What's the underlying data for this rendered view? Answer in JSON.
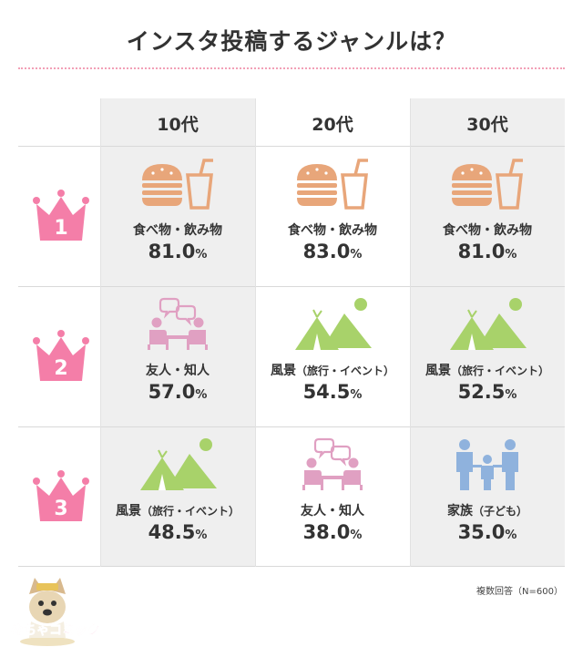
{
  "title": "インスタ投稿するジャンルは？",
  "columns": [
    "10代",
    "20代",
    "30代"
  ],
  "ranks": [
    "1",
    "2",
    "3"
  ],
  "cells": [
    [
      {
        "genre": "食べ物・飲み物",
        "sub": "",
        "value": "81.0",
        "unit": "%",
        "icon": "burger-drink-icon"
      },
      {
        "genre": "食べ物・飲み物",
        "sub": "",
        "value": "83.0",
        "unit": "%",
        "icon": "burger-drink-icon"
      },
      {
        "genre": "食べ物・飲み物",
        "sub": "",
        "value": "81.0",
        "unit": "%",
        "icon": "burger-drink-icon"
      }
    ],
    [
      {
        "genre": "友人・知人",
        "sub": "",
        "value": "57.0",
        "unit": "%",
        "icon": "friends-chat-icon"
      },
      {
        "genre": "風景",
        "sub": "（旅行・イベント）",
        "value": "54.5",
        "unit": "%",
        "icon": "tent-landscape-icon"
      },
      {
        "genre": "風景",
        "sub": "（旅行・イベント）",
        "value": "52.5",
        "unit": "%",
        "icon": "tent-landscape-icon"
      }
    ],
    [
      {
        "genre": "風景",
        "sub": "（旅行・イベント）",
        "value": "48.5",
        "unit": "%",
        "icon": "tent-landscape-icon"
      },
      {
        "genre": "友人・知人",
        "sub": "",
        "value": "38.0",
        "unit": "%",
        "icon": "friends-chat-icon"
      },
      {
        "genre": "家族",
        "sub": "（子ども）",
        "value": "35.0",
        "unit": "%",
        "icon": "family-icon"
      }
    ]
  ],
  "note": "複数回答（N=600）",
  "logo": {
    "text": "めちゃコミック"
  },
  "colors": {
    "pink": "#f47ea8",
    "food": "#e8a67a",
    "friends": "#e0a0c2",
    "landscape": "#a8d26a",
    "family": "#8fb2dd",
    "cell_bg": "#efefef"
  }
}
